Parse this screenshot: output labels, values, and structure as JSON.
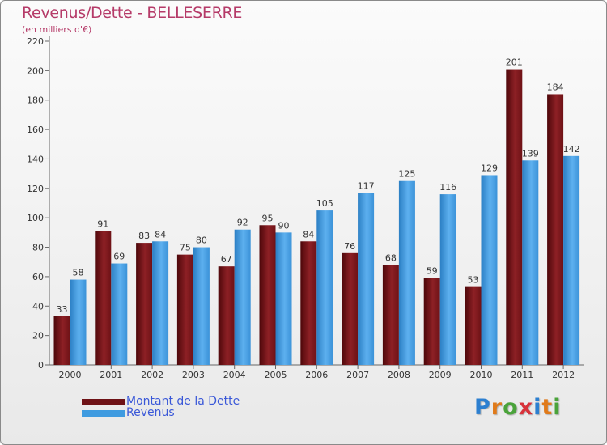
{
  "header": {
    "title": "Revenus/Dette - BELLESERRE",
    "subtitle": "(en milliers d'€)"
  },
  "chart_data": {
    "type": "bar",
    "categories": [
      "2000",
      "2001",
      "2002",
      "2003",
      "2004",
      "2005",
      "2006",
      "2007",
      "2008",
      "2009",
      "2010",
      "2011",
      "2012"
    ],
    "series": [
      {
        "name": "Montant de la Dette",
        "values": [
          33,
          91,
          83,
          75,
          67,
          95,
          84,
          76,
          68,
          59,
          53,
          201,
          184
        ],
        "color": "#7a1518"
      },
      {
        "name": "Revenus",
        "values": [
          58,
          69,
          84,
          80,
          92,
          90,
          105,
          117,
          125,
          116,
          129,
          139,
          142
        ],
        "color": "#3f9be0"
      }
    ],
    "ylim": [
      0,
      220
    ],
    "yticks": [
      "0",
      "20",
      "40",
      "60",
      "80",
      "100",
      "120",
      "140",
      "160",
      "180",
      "200",
      "220"
    ],
    "grid": false,
    "legend": "bottom-left",
    "xlabel": "",
    "ylabel": ""
  },
  "legend": {
    "items": [
      {
        "label": "Montant de la Dette",
        "color": "#7a1518"
      },
      {
        "label": "Revenus",
        "color": "#3f9be0"
      }
    ]
  },
  "brand": {
    "letters": [
      "P",
      "r",
      "o",
      "x",
      "i",
      "t",
      "i"
    ],
    "colors": [
      "#2c7fd0",
      "#e07a1a",
      "#4aa33a",
      "#d8323a",
      "#2c7fd0",
      "#e07a1a",
      "#4aa33a"
    ]
  }
}
